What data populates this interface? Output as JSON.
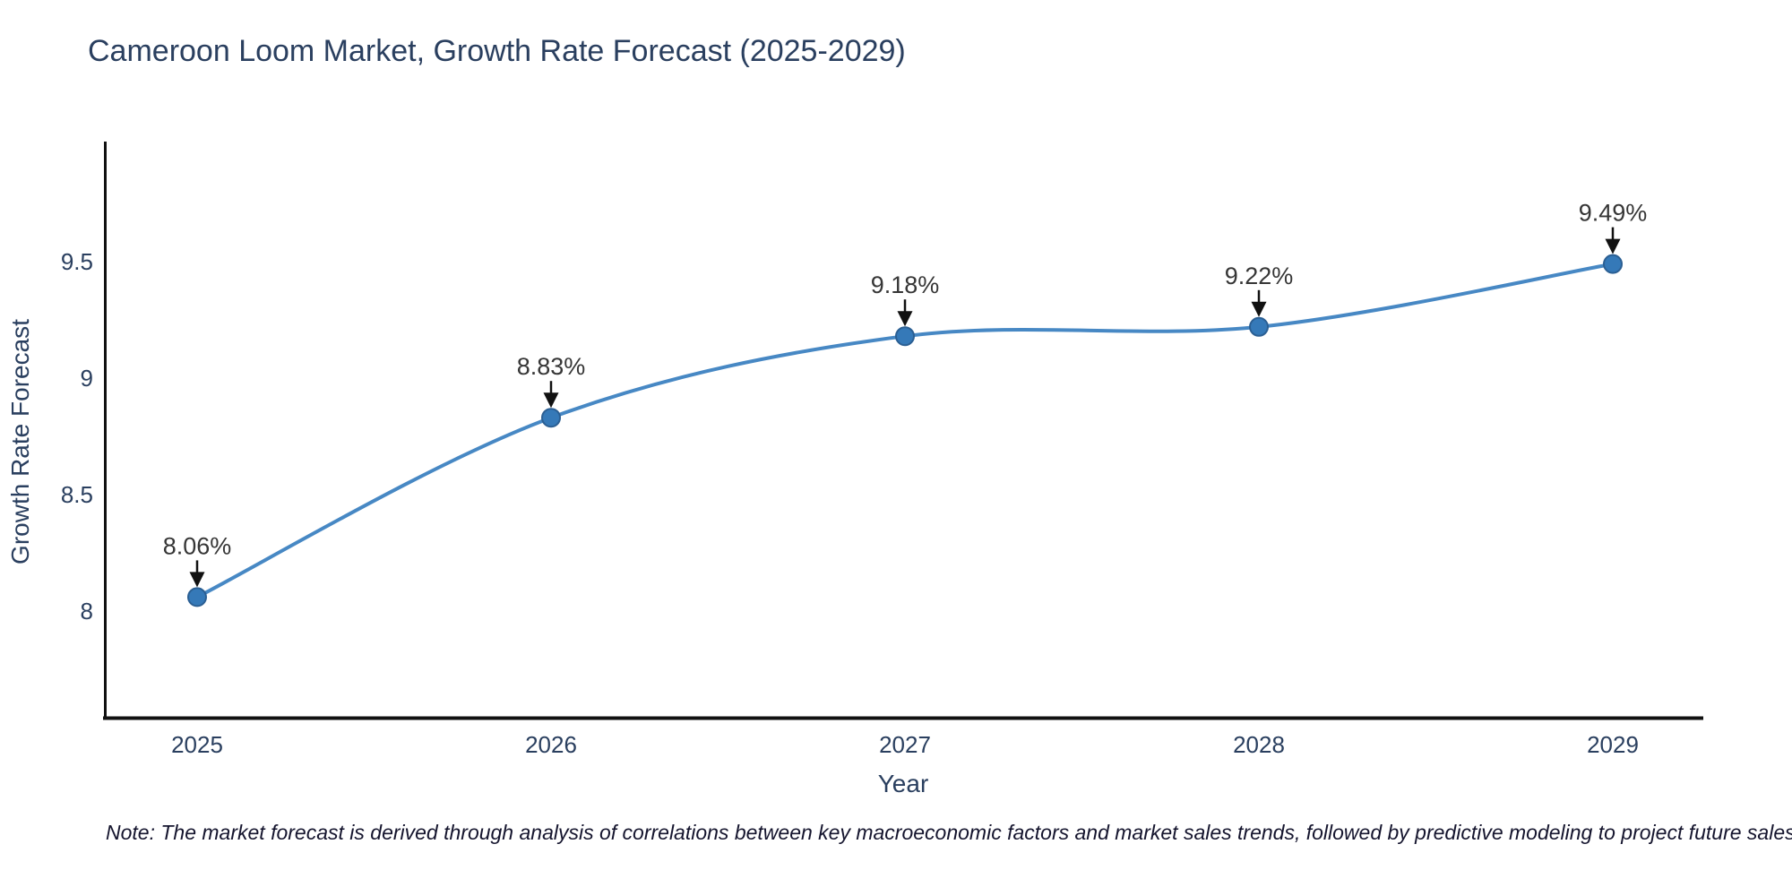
{
  "title": "Cameroon Loom Market, Growth Rate Forecast (2025-2029)",
  "note": "Note: The market forecast is derived through analysis of correlations between key macroeconomic factors and market sales trends, followed by predictive modeling to project future sales",
  "chart_data": {
    "type": "line",
    "title": "Cameroon Loom Market, Growth Rate Forecast (2025-2029)",
    "x": [
      2025,
      2026,
      2027,
      2028,
      2029
    ],
    "y": [
      8.06,
      8.83,
      9.18,
      9.22,
      9.49
    ],
    "point_labels": [
      "8.06%",
      "8.83%",
      "9.18%",
      "9.22%",
      "9.49%"
    ],
    "x_tick_labels": [
      "2025",
      "2026",
      "2027",
      "2028",
      "2029"
    ],
    "y_ticks": [
      8,
      8.5,
      9,
      9.5
    ],
    "y_tick_labels": [
      "8",
      "8.5",
      "9",
      "9.5"
    ],
    "xlabel": "Year",
    "ylabel": "Growth Rate Forecast",
    "ylim": [
      7.55,
      10.02
    ],
    "line_shape": "spline",
    "grid": false,
    "legend": "none",
    "colors": {
      "line": "#4788c4",
      "marker_fill": "#3579b8",
      "marker_edge": "#2b5f93",
      "arrow": "#111111",
      "axis_line": "#111111",
      "title_text": "#2a3f5f",
      "tick_text": "#2a3f5f",
      "annotation_text": "#363636"
    }
  }
}
